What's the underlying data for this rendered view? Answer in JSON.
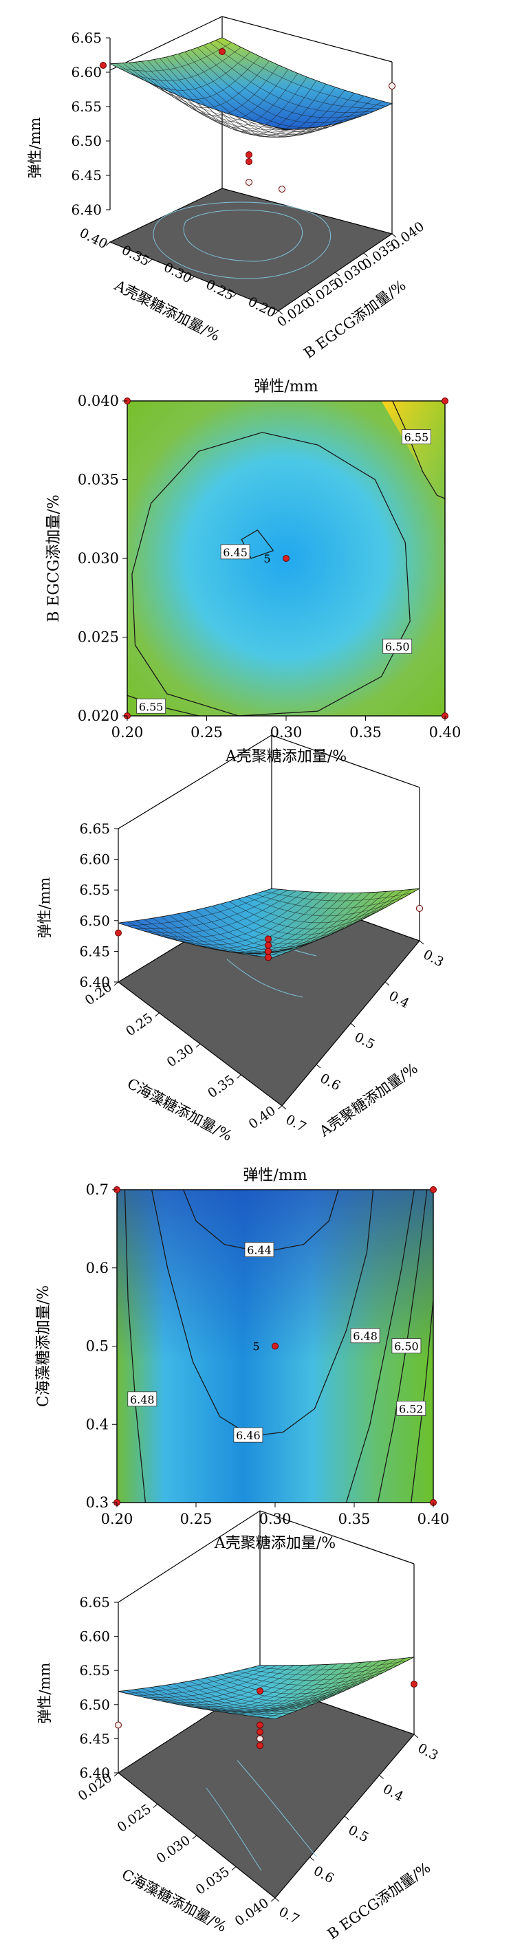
{
  "chart_data": [
    {
      "id": "p1",
      "type": "surface3d",
      "zlabel": "弹性/mm",
      "xlabel": "A壳聚糖添加量/%",
      "ylabel": "B EGCG添加量/%",
      "xticks": [
        "0.40",
        "0.35",
        "0.30",
        "0.25",
        "0.20"
      ],
      "yticks": [
        "0.020",
        "0.025",
        "0.030",
        "0.035",
        "0.040"
      ],
      "zticks": [
        "6.65",
        "6.60",
        "6.55",
        "6.50",
        "6.45",
        "6.40"
      ],
      "zlim": [
        6.4,
        6.65
      ],
      "surface_min": 6.45,
      "surface_max": 6.61,
      "points": [
        6.61,
        6.63,
        6.58,
        6.48,
        6.47,
        6.44,
        6.43
      ]
    },
    {
      "id": "p2",
      "type": "contour",
      "title": "弹性/mm",
      "xlabel": "A壳聚糖添加量/%",
      "ylabel": "B EGCG添加量/%",
      "xticks": [
        "0.20",
        "0.25",
        "0.30",
        "0.35",
        "0.40"
      ],
      "yticks": [
        "0.020",
        "0.025",
        "0.030",
        "0.035",
        "0.040"
      ],
      "xlim": [
        0.2,
        0.4
      ],
      "ylim": [
        0.02,
        0.04
      ],
      "contours": [
        {
          "level": "6.45",
          "label": "6.45",
          "points": [
            [
              0.292,
              0.0305
            ],
            [
              0.282,
              0.0318
            ],
            [
              0.272,
              0.0312
            ],
            [
              0.278,
              0.03
            ],
            [
              0.292,
              0.0305
            ]
          ]
        },
        {
          "level": "6.50",
          "label": "6.50",
          "points": [
            [
              0.32,
              0.0372
            ],
            [
              0.356,
              0.035
            ],
            [
              0.375,
              0.031
            ],
            [
              0.378,
              0.026
            ],
            [
              0.36,
              0.0225
            ],
            [
              0.32,
              0.0203
            ],
            [
              0.27,
              0.02
            ],
            [
              0.225,
              0.0214
            ],
            [
              0.205,
              0.0245
            ],
            [
              0.203,
              0.029
            ],
            [
              0.215,
              0.0335
            ],
            [
              0.245,
              0.0368
            ],
            [
              0.285,
              0.038
            ],
            [
              0.32,
              0.0372
            ]
          ]
        },
        {
          "level": "6.55",
          "label": "6.55",
          "points": [
            [
              0.367,
              0.04
            ],
            [
              0.376,
              0.038
            ],
            [
              0.386,
              0.0355
            ],
            [
              0.395,
              0.034
            ],
            [
              0.4,
              0.0338
            ]
          ]
        },
        {
          "level": "6.55",
          "label": "6.55",
          "points": [
            [
              0.2,
              0.0213
            ],
            [
              0.22,
              0.0206
            ],
            [
              0.245,
              0.02
            ]
          ]
        }
      ],
      "contour_labels": [
        {
          "text": "6.45",
          "x": 0.268,
          "y": 0.0304
        },
        {
          "text": "6.50",
          "x": 0.37,
          "y": 0.0244
        },
        {
          "text": "6.55",
          "x": 0.382,
          "y": 0.0377
        },
        {
          "text": "6.55",
          "x": 0.215,
          "y": 0.0206
        }
      ],
      "center_label": {
        "text": "5",
        "x": 0.292,
        "y": 0.03
      },
      "design_points": [
        [
          0.2,
          0.04
        ],
        [
          0.4,
          0.04
        ],
        [
          0.3,
          0.03
        ],
        [
          0.2,
          0.02
        ],
        [
          0.4,
          0.02
        ]
      ]
    },
    {
      "id": "p3",
      "type": "surface3d",
      "zlabel": "弹性/mm",
      "xlabel": "A壳聚糖添加量/%",
      "ylabel": "C海藻糖添加量/%",
      "xticks": [
        "0.20",
        "0.25",
        "0.30",
        "0.35",
        "0.40"
      ],
      "yticks": [
        "0.7",
        "0.6",
        "0.5",
        "0.4",
        "0.3"
      ],
      "zticks": [
        "6.65",
        "6.60",
        "6.55",
        "6.50",
        "6.45",
        "6.40"
      ],
      "zlim": [
        6.4,
        6.65
      ],
      "surface_min": 6.44,
      "surface_max": 6.53,
      "points": [
        6.48,
        6.52,
        6.47,
        6.46,
        6.45,
        6.44
      ]
    },
    {
      "id": "p4",
      "type": "contour",
      "title": "弹性/mm",
      "xlabel": "A壳聚糖添加量/%",
      "ylabel": "C海藻糖添加量/%",
      "xticks": [
        "0.20",
        "0.25",
        "0.30",
        "0.35",
        "0.40"
      ],
      "yticks": [
        "0.3",
        "0.4",
        "0.5",
        "0.6",
        "0.7"
      ],
      "xlim": [
        0.2,
        0.4
      ],
      "ylim": [
        0.3,
        0.7
      ],
      "contours": [
        {
          "level": "6.44",
          "label": "6.44",
          "points": [
            [
              0.242,
              0.7
            ],
            [
              0.25,
              0.66
            ],
            [
              0.268,
              0.63
            ],
            [
              0.292,
              0.62
            ],
            [
              0.318,
              0.63
            ],
            [
              0.334,
              0.66
            ],
            [
              0.34,
              0.7
            ]
          ]
        },
        {
          "level": "6.46",
          "label": "6.46",
          "points": [
            [
              0.222,
              0.7
            ],
            [
              0.232,
              0.6
            ],
            [
              0.248,
              0.48
            ],
            [
              0.265,
              0.41
            ],
            [
              0.285,
              0.385
            ],
            [
              0.305,
              0.39
            ],
            [
              0.325,
              0.42
            ],
            [
              0.345,
              0.52
            ],
            [
              0.358,
              0.62
            ],
            [
              0.362,
              0.7
            ]
          ]
        },
        {
          "level": "6.48",
          "label": "6.48",
          "points": [
            [
              0.205,
              0.7
            ],
            [
              0.207,
              0.56
            ],
            [
              0.212,
              0.42
            ],
            [
              0.218,
              0.3
            ]
          ]
        },
        {
          "level": "6.48",
          "label": "6.48",
          "points": [
            [
              0.388,
              0.7
            ],
            [
              0.38,
              0.6
            ],
            [
              0.37,
              0.5
            ],
            [
              0.36,
              0.4
            ],
            [
              0.345,
              0.3
            ]
          ]
        },
        {
          "level": "6.50",
          "label": "6.50",
          "points": [
            [
              0.396,
              0.7
            ],
            [
              0.39,
              0.6
            ],
            [
              0.383,
              0.5
            ],
            [
              0.375,
              0.4
            ],
            [
              0.365,
              0.3
            ]
          ]
        },
        {
          "level": "6.52",
          "label": "6.52",
          "points": [
            [
              0.4,
              0.56
            ],
            [
              0.395,
              0.45
            ],
            [
              0.386,
              0.3
            ]
          ]
        }
      ],
      "contour_labels": [
        {
          "text": "6.44",
          "x": 0.29,
          "y": 0.623
        },
        {
          "text": "6.46",
          "x": 0.283,
          "y": 0.386
        },
        {
          "text": "6.48",
          "x": 0.216,
          "y": 0.432
        },
        {
          "text": "6.48",
          "x": 0.357,
          "y": 0.513
        },
        {
          "text": "6.50",
          "x": 0.383,
          "y": 0.5
        },
        {
          "text": "6.52",
          "x": 0.386,
          "y": 0.42
        }
      ],
      "center_label": {
        "text": "5",
        "x": 0.292,
        "y": 0.5
      },
      "design_points": [
        [
          0.2,
          0.7
        ],
        [
          0.4,
          0.7
        ],
        [
          0.3,
          0.5
        ],
        [
          0.2,
          0.3
        ],
        [
          0.4,
          0.3
        ]
      ]
    },
    {
      "id": "p5",
      "type": "surface3d",
      "zlabel": "弹性/mm",
      "xlabel": "B EGCG添加量/%",
      "ylabel": "C海藻糖添加量/%",
      "xticks": [
        "0.020",
        "0.025",
        "0.030",
        "0.035",
        "0.040"
      ],
      "yticks": [
        "0.7",
        "0.6",
        "0.5",
        "0.4",
        "0.3"
      ],
      "zticks": [
        "6.65",
        "6.60",
        "6.55",
        "6.50",
        "6.45",
        "6.40"
      ],
      "zlim": [
        6.4,
        6.65
      ],
      "surface_min": 6.45,
      "surface_max": 6.53,
      "points": [
        6.47,
        6.53,
        6.52,
        6.47,
        6.46,
        6.45,
        6.44
      ]
    }
  ]
}
